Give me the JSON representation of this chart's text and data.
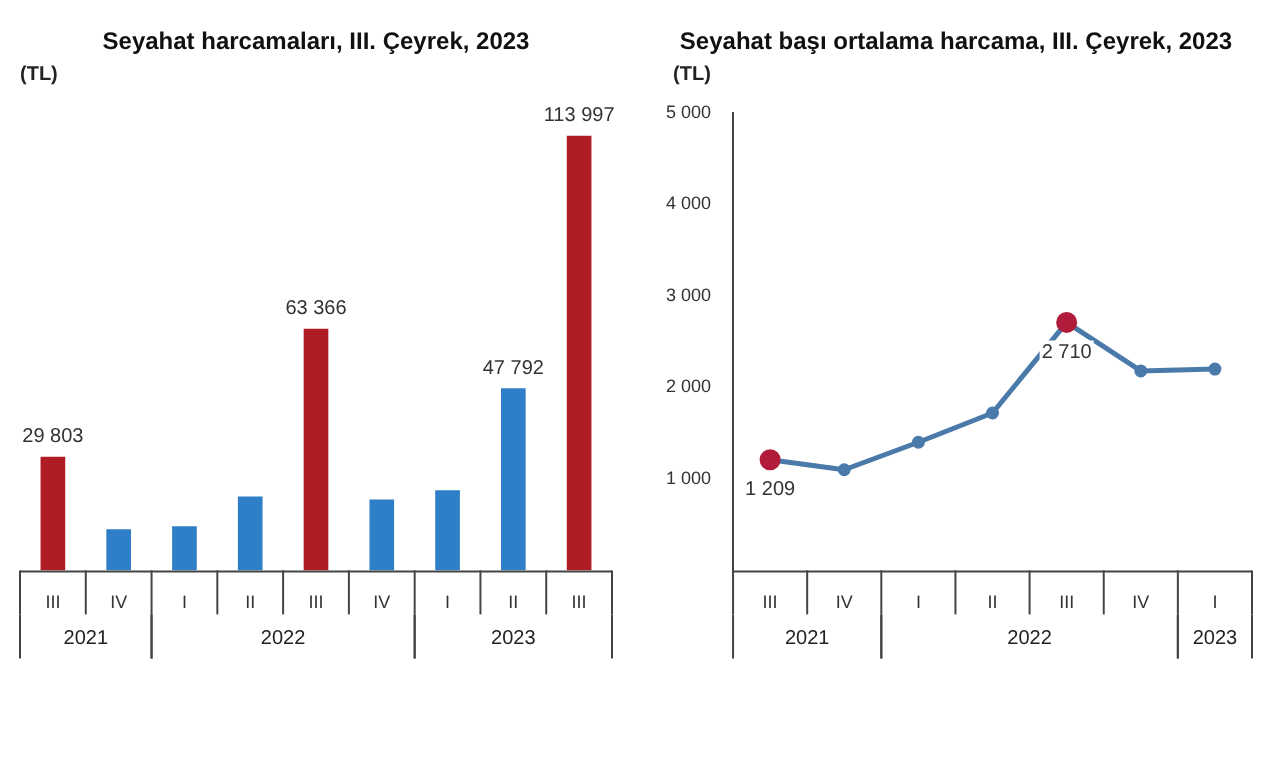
{
  "chart_data": [
    {
      "type": "bar",
      "title": "Seyahat harcamaları, III. Çeyrek, 2023",
      "ylabel": "(TL)",
      "categories": [
        "III",
        "IV",
        "I",
        "II",
        "III",
        "IV",
        "I",
        "II",
        "III"
      ],
      "values": [
        29803,
        10800,
        11600,
        19400,
        63366,
        18600,
        21000,
        47792,
        113997
      ],
      "colors": [
        "#b01c24",
        "#2f7fc8",
        "#2f7fc8",
        "#2f7fc8",
        "#b01c24",
        "#2f7fc8",
        "#2f7fc8",
        "#2f7fc8",
        "#b01c24"
      ],
      "value_labels": [
        "29 803",
        null,
        null,
        null,
        "63 366",
        null,
        null,
        "47 792",
        "113 997"
      ],
      "annotations": [
        "2021",
        "2022",
        "2023"
      ],
      "tick_labels": "x",
      "grid": false,
      "legend": false
    },
    {
      "type": "line",
      "title": "Seyahat başı ortalama harcama, III. Çeyrek, 2023",
      "ylabel": "(TL)",
      "categories": [
        "III",
        "IV",
        "I",
        "II",
        "III",
        "IV",
        "I"
      ],
      "series": [
        {
          "color": "#4a7aaa",
          "colors": [
            "#b01c3a",
            null,
            null,
            null,
            "#b01c3a",
            null,
            null
          ],
          "values": [
            1209,
            1100,
            1400,
            1720,
            2710,
            2180,
            2200
          ]
        }
      ],
      "value_labels": [
        "1 209",
        null,
        null,
        null,
        "2 710",
        null,
        null
      ],
      "ylim": [
        0,
        5000
      ],
      "yticks": [
        {
          "value": 0,
          "label": null
        },
        {
          "value": 1000,
          "label": "1 000"
        },
        {
          "value": 2000,
          "label": "2 000"
        },
        {
          "value": 3000,
          "label": "3 000"
        },
        {
          "value": 4000,
          "label": "4 000"
        },
        {
          "value": 5000,
          "label": "5 000"
        }
      ],
      "annotations": [
        "2021",
        "2022",
        "2023"
      ],
      "grid": false,
      "legend": false,
      "marker": "circle"
    }
  ]
}
